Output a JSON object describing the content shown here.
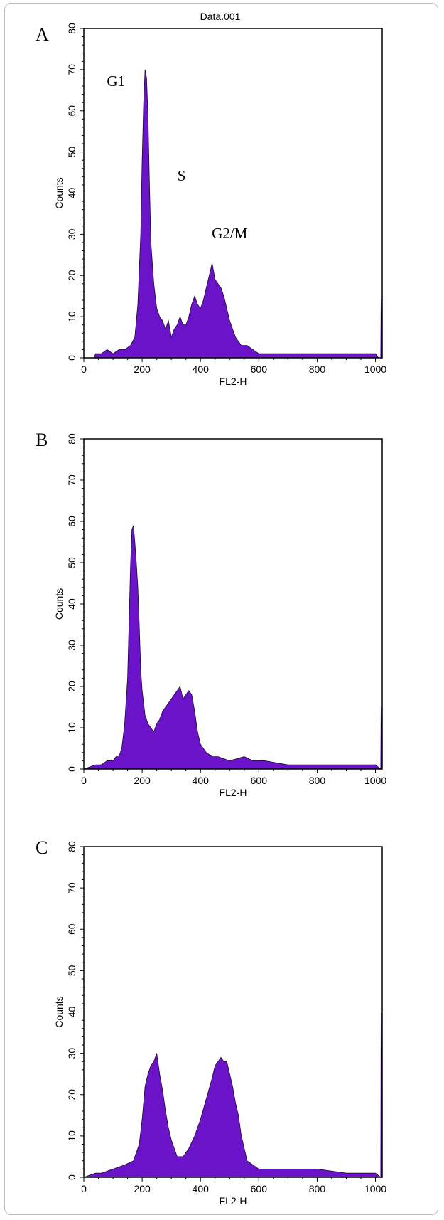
{
  "chart_data": [
    {
      "type": "area",
      "panel_label": "A",
      "title": "Data.001",
      "xlabel": "FL2-H",
      "ylabel": "Counts",
      "xlim": [
        0,
        1023
      ],
      "ylim": [
        0,
        80
      ],
      "xticks": [
        0,
        200,
        400,
        600,
        800,
        1000
      ],
      "yticks": [
        0,
        10,
        20,
        30,
        40,
        50,
        60,
        70,
        80
      ],
      "annotations": [
        {
          "text": "G1",
          "x": 110,
          "y": 66
        },
        {
          "text": "S",
          "x": 335,
          "y": 43
        },
        {
          "text": "G2/M",
          "x": 500,
          "y": 29
        }
      ],
      "series": [
        {
          "x": [
            0,
            35,
            40,
            60,
            80,
            100,
            120,
            140,
            160,
            175,
            185,
            195,
            200,
            205,
            210,
            215,
            220,
            225,
            230,
            240,
            250,
            260,
            270,
            280,
            290,
            300,
            310,
            320,
            330,
            340,
            350,
            360,
            370,
            380,
            390,
            400,
            410,
            420,
            430,
            440,
            450,
            460,
            470,
            480,
            490,
            500,
            520,
            540,
            560,
            580,
            600,
            650,
            700,
            800,
            900,
            1000,
            1010,
            1018,
            1019,
            1020,
            1023
          ],
          "y": [
            0,
            0,
            1,
            1,
            2,
            1,
            2,
            2,
            3,
            5,
            13,
            30,
            48,
            62,
            70,
            68,
            59,
            42,
            28,
            18,
            12,
            10,
            9,
            7,
            9,
            5,
            7,
            8,
            10,
            8,
            8,
            10,
            13,
            15,
            13,
            12,
            14,
            17,
            20,
            23,
            19,
            18,
            17,
            15,
            12,
            9,
            5,
            3,
            3,
            2,
            1,
            1,
            1,
            1,
            1,
            1,
            0,
            0,
            14,
            14,
            0
          ]
        }
      ]
    },
    {
      "type": "area",
      "panel_label": "B",
      "xlabel": "FL2-H",
      "ylabel": "Counts",
      "xlim": [
        0,
        1023
      ],
      "ylim": [
        0,
        80
      ],
      "xticks": [
        0,
        200,
        400,
        600,
        800,
        1000
      ],
      "yticks": [
        0,
        10,
        20,
        30,
        40,
        50,
        60,
        70,
        80
      ],
      "series": [
        {
          "x": [
            0,
            40,
            60,
            80,
            100,
            110,
            120,
            130,
            140,
            150,
            155,
            160,
            165,
            170,
            175,
            180,
            185,
            190,
            195,
            200,
            210,
            220,
            230,
            240,
            250,
            260,
            270,
            280,
            290,
            300,
            310,
            320,
            330,
            340,
            350,
            360,
            370,
            380,
            390,
            400,
            420,
            440,
            460,
            500,
            550,
            580,
            620,
            700,
            800,
            900,
            1000,
            1018,
            1019,
            1020,
            1023
          ],
          "y": [
            0,
            1,
            1,
            2,
            2,
            3,
            3,
            5,
            11,
            22,
            35,
            49,
            58,
            59,
            55,
            50,
            44,
            35,
            24,
            19,
            13,
            11,
            10,
            9,
            11,
            12,
            14,
            15,
            16,
            17,
            18,
            19,
            20,
            17,
            18,
            19,
            18,
            14,
            9,
            6,
            4,
            3,
            3,
            2,
            3,
            2,
            2,
            1,
            1,
            1,
            1,
            0,
            15,
            15,
            0
          ]
        }
      ]
    },
    {
      "type": "area",
      "panel_label": "C",
      "xlabel": "FL2-H",
      "ylabel": "Counts",
      "xlim": [
        0,
        1023
      ],
      "ylim": [
        0,
        80
      ],
      "xticks": [
        0,
        200,
        400,
        600,
        800,
        1000
      ],
      "yticks": [
        0,
        10,
        20,
        30,
        40,
        50,
        60,
        70,
        80
      ],
      "series": [
        {
          "x": [
            0,
            40,
            60,
            100,
            140,
            170,
            190,
            200,
            210,
            220,
            230,
            240,
            250,
            260,
            270,
            280,
            290,
            300,
            310,
            320,
            330,
            340,
            350,
            360,
            380,
            400,
            420,
            440,
            450,
            460,
            470,
            480,
            490,
            500,
            510,
            520,
            530,
            540,
            550,
            560,
            580,
            600,
            650,
            700,
            800,
            900,
            1000,
            1018,
            1019,
            1020,
            1023
          ],
          "y": [
            0,
            1,
            1,
            2,
            3,
            4,
            8,
            14,
            22,
            25,
            27,
            28,
            30,
            25,
            21,
            16,
            12,
            9,
            7,
            5,
            5,
            5,
            6,
            7,
            10,
            14,
            19,
            24,
            27,
            28,
            29,
            28,
            28,
            25,
            22,
            18,
            15,
            10,
            7,
            4,
            3,
            2,
            2,
            2,
            2,
            1,
            1,
            0,
            40,
            40,
            0
          ]
        }
      ]
    }
  ]
}
